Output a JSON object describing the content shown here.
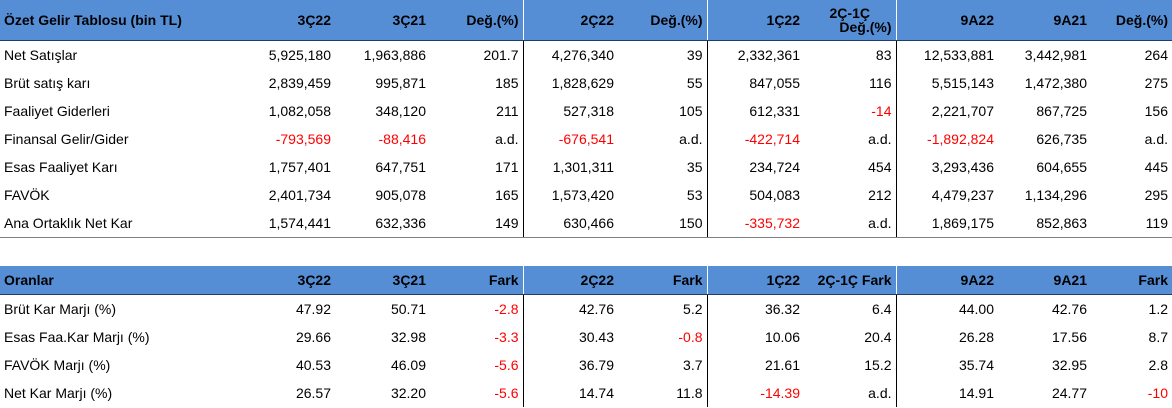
{
  "table1": {
    "headers": [
      "Özet Gelir Tablosu (bin TL)",
      "3Ç22",
      "3Ç21",
      "Değ.(%)",
      "2Ç22",
      "Değ.(%)",
      "1Ç22",
      "2Ç-1Ç Değ.(%)",
      "9A22",
      "9A21",
      "Değ.(%)"
    ],
    "header_q_change_line1": "2Ç-1Ç",
    "header_q_change_line2": "Değ.(%)",
    "rows": [
      [
        "Net Satışlar",
        "5,925,180",
        "1,963,886",
        "201.7",
        "4,276,340",
        "39",
        "2,332,361",
        "83",
        "12,533,881",
        "3,442,981",
        "264"
      ],
      [
        "Brüt satış karı",
        "2,839,459",
        "995,871",
        "185",
        "1,828,629",
        "55",
        "847,055",
        "116",
        "5,515,143",
        "1,472,380",
        "275"
      ],
      [
        "Faaliyet Giderleri",
        "1,082,058",
        "348,120",
        "211",
        "527,318",
        "105",
        "612,331",
        "-14",
        "2,221,707",
        "867,725",
        "156"
      ],
      [
        "Finansal Gelir/Gider",
        "-793,569",
        "-88,416",
        "a.d.",
        "-676,541",
        "a.d.",
        "-422,714",
        "a.d.",
        "-1,892,824",
        "626,735",
        "a.d."
      ],
      [
        "Esas Faaliyet Karı",
        "1,757,401",
        "647,751",
        "171",
        "1,301,311",
        "35",
        "234,724",
        "454",
        "3,293,436",
        "604,655",
        "445"
      ],
      [
        "FAVÖK",
        "2,401,734",
        "905,078",
        "165",
        "1,573,420",
        "53",
        "504,083",
        "212",
        "4,479,237",
        "1,134,296",
        "295"
      ],
      [
        "Ana Ortaklık Net Kar",
        "1,574,441",
        "632,336",
        "149",
        "630,466",
        "150",
        "-335,732",
        "a.d.",
        "1,869,175",
        "852,863",
        "119"
      ]
    ]
  },
  "table2": {
    "headers": [
      "Oranlar",
      "3Ç22",
      "3Ç21",
      "Fark",
      "2Ç22",
      "Fark",
      "1Ç22",
      "2Ç-1Ç Fark",
      "9A22",
      "9A21",
      "Fark"
    ],
    "rows": [
      [
        "Brüt Kar Marjı (%)",
        "47.92",
        "50.71",
        "-2.8",
        "42.76",
        "5.2",
        "36.32",
        "6.4",
        "44.00",
        "42.76",
        "1.2"
      ],
      [
        "Esas Faa.Kar Marjı (%)",
        "29.66",
        "32.98",
        "-3.3",
        "30.43",
        "-0.8",
        "10.06",
        "20.4",
        "26.28",
        "17.56",
        "8.7"
      ],
      [
        "FAVÖK Marjı (%)",
        "40.53",
        "46.09",
        "-5.6",
        "36.79",
        "3.7",
        "21.61",
        "15.2",
        "35.74",
        "32.95",
        "2.8"
      ],
      [
        "Net Kar Marjı (%)",
        "26.57",
        "32.20",
        "-5.6",
        "14.74",
        "11.8",
        "-14.39",
        "a.d.",
        "14.91",
        "24.77",
        "-10"
      ]
    ]
  },
  "colors": {
    "header_bg": "#558ed5",
    "negative": "#ff0000",
    "text": "#000000"
  }
}
